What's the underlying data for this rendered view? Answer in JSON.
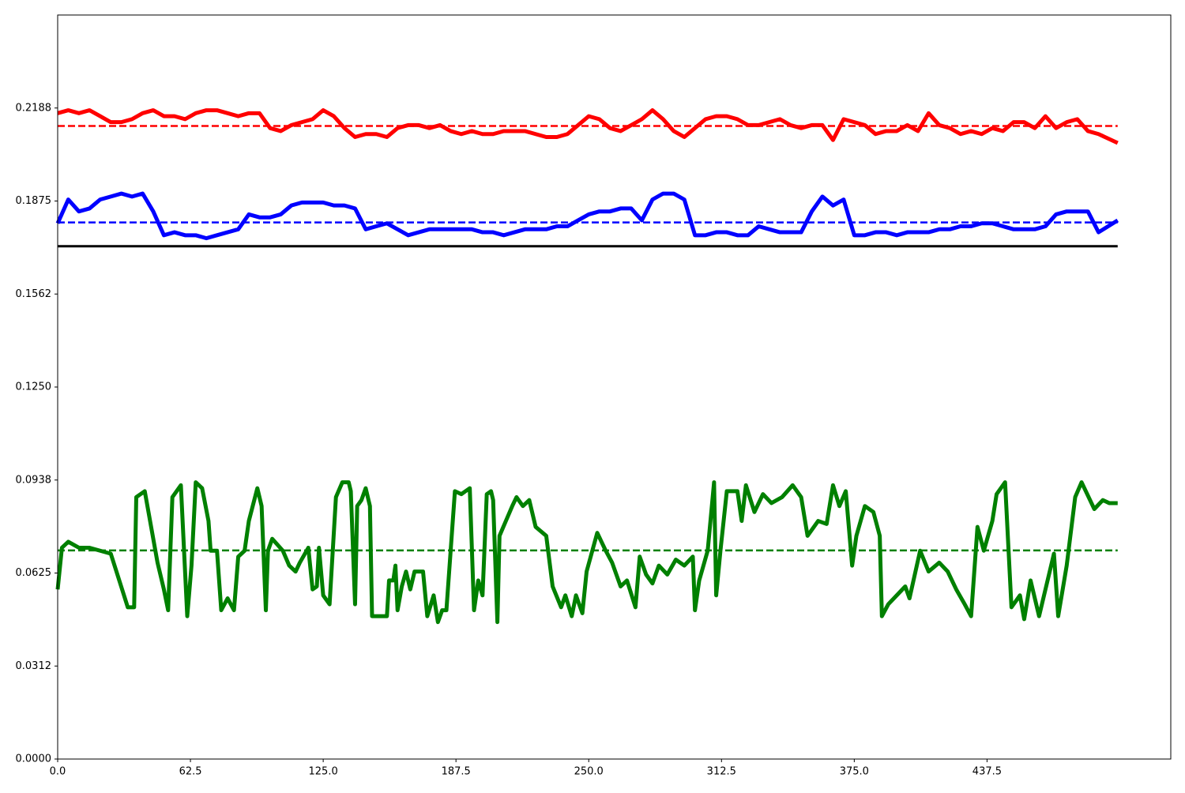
{
  "chart_data": {
    "type": "line",
    "xlim": [
      0,
      524
    ],
    "ylim": [
      0,
      0.25
    ],
    "xticks": [
      {
        "value": 0,
        "label": "0.0"
      },
      62.5,
      {
        "value": 125,
        "label": "125.0"
      },
      187.5,
      {
        "value": 250,
        "label": "250.0"
      },
      312.5,
      {
        "value": 375,
        "label": "375.0"
      },
      437.5
    ],
    "yticks": [
      {
        "value": 0,
        "label": "0.0000"
      },
      {
        "value": 0.03125,
        "label": "0.0312"
      },
      {
        "value": 0.0625,
        "label": "0.0625"
      },
      {
        "value": 0.09375,
        "label": "0.0938"
      },
      {
        "value": 0.125,
        "label": "0.1250"
      },
      {
        "value": 0.15625,
        "label": "0.1562"
      },
      {
        "value": 0.1875,
        "label": "0.1875"
      },
      {
        "value": 0.21875,
        "label": "0.2188"
      }
    ],
    "series": [
      {
        "color": "#ff0000",
        "style": "solid",
        "x": [
          0,
          5,
          10,
          15,
          20,
          25,
          30,
          35,
          40,
          45,
          50,
          55,
          60,
          65,
          70,
          75,
          80,
          85,
          90,
          95,
          100,
          105,
          110,
          115,
          120,
          125,
          130,
          135,
          140,
          145,
          150,
          155,
          160,
          165,
          170,
          175,
          180,
          185,
          190,
          195,
          200,
          205,
          210,
          215,
          220,
          225,
          230,
          235,
          240,
          245,
          250,
          255,
          260,
          265,
          270,
          275,
          280,
          285,
          290,
          295,
          300,
          305,
          310,
          315,
          320,
          325,
          330,
          335,
          340,
          345,
          350,
          355,
          360,
          365,
          370,
          375,
          380,
          385,
          390,
          395,
          400,
          405,
          410,
          415,
          420,
          425,
          430,
          435,
          440,
          445,
          450,
          455,
          460,
          465,
          470,
          475,
          480,
          485,
          490,
          499
        ],
        "values": [
          0.217,
          0.218,
          0.217,
          0.218,
          0.216,
          0.214,
          0.214,
          0.215,
          0.217,
          0.218,
          0.216,
          0.216,
          0.215,
          0.217,
          0.218,
          0.218,
          0.217,
          0.216,
          0.217,
          0.217,
          0.212,
          0.211,
          0.213,
          0.214,
          0.215,
          0.218,
          0.216,
          0.212,
          0.209,
          0.21,
          0.21,
          0.209,
          0.212,
          0.213,
          0.213,
          0.212,
          0.213,
          0.211,
          0.21,
          0.211,
          0.21,
          0.21,
          0.211,
          0.211,
          0.211,
          0.21,
          0.209,
          0.209,
          0.21,
          0.213,
          0.216,
          0.215,
          0.212,
          0.211,
          0.213,
          0.215,
          0.218,
          0.215,
          0.211,
          0.209,
          0.212,
          0.215,
          0.216,
          0.216,
          0.215,
          0.213,
          0.213,
          0.214,
          0.215,
          0.213,
          0.212,
          0.213,
          0.213,
          0.208,
          0.215,
          0.214,
          0.213,
          0.21,
          0.211,
          0.211,
          0.213,
          0.211,
          0.217,
          0.213,
          0.212,
          0.21,
          0.211,
          0.21,
          0.212,
          0.211,
          0.214,
          0.214,
          0.212,
          0.216,
          0.212,
          0.214,
          0.215,
          0.211,
          0.21,
          0.207
        ]
      },
      {
        "color": "#ff0000",
        "style": "dashed",
        "x": [
          0,
          499
        ],
        "values": [
          0.2127,
          0.2127
        ]
      },
      {
        "color": "#0000ff",
        "style": "solid",
        "x": [
          0,
          5,
          10,
          15,
          20,
          25,
          30,
          35,
          40,
          45,
          50,
          55,
          60,
          65,
          70,
          75,
          80,
          85,
          90,
          95,
          100,
          105,
          110,
          115,
          120,
          125,
          130,
          135,
          140,
          145,
          150,
          155,
          160,
          165,
          170,
          175,
          180,
          185,
          190,
          195,
          200,
          205,
          210,
          215,
          220,
          225,
          230,
          235,
          240,
          245,
          250,
          255,
          260,
          265,
          270,
          275,
          280,
          285,
          290,
          295,
          300,
          305,
          310,
          315,
          320,
          325,
          330,
          335,
          340,
          345,
          350,
          355,
          360,
          365,
          370,
          375,
          380,
          385,
          390,
          395,
          400,
          405,
          410,
          415,
          420,
          425,
          430,
          435,
          440,
          445,
          450,
          455,
          460,
          465,
          470,
          475,
          480,
          485,
          490,
          499
        ],
        "values": [
          0.18,
          0.188,
          0.184,
          0.185,
          0.188,
          0.189,
          0.19,
          0.189,
          0.19,
          0.184,
          0.176,
          0.177,
          0.176,
          0.176,
          0.175,
          0.176,
          0.177,
          0.178,
          0.183,
          0.182,
          0.182,
          0.183,
          0.186,
          0.187,
          0.187,
          0.187,
          0.186,
          0.186,
          0.185,
          0.178,
          0.179,
          0.18,
          0.178,
          0.176,
          0.177,
          0.178,
          0.178,
          0.178,
          0.178,
          0.178,
          0.177,
          0.177,
          0.176,
          0.177,
          0.178,
          0.178,
          0.178,
          0.179,
          0.179,
          0.181,
          0.183,
          0.184,
          0.184,
          0.185,
          0.185,
          0.181,
          0.188,
          0.19,
          0.19,
          0.188,
          0.176,
          0.176,
          0.177,
          0.177,
          0.176,
          0.176,
          0.179,
          0.178,
          0.177,
          0.177,
          0.177,
          0.184,
          0.189,
          0.186,
          0.188,
          0.176,
          0.176,
          0.177,
          0.177,
          0.176,
          0.177,
          0.177,
          0.177,
          0.178,
          0.178,
          0.179,
          0.179,
          0.18,
          0.18,
          0.179,
          0.178,
          0.178,
          0.178,
          0.179,
          0.183,
          0.184,
          0.184,
          0.184,
          0.177,
          0.181
        ]
      },
      {
        "color": "#0000ff",
        "style": "dashed",
        "x": [
          0,
          499
        ],
        "values": [
          0.1803,
          0.1803
        ]
      },
      {
        "color": "#000000",
        "style": "thin",
        "x": [
          0,
          499
        ],
        "values": [
          0.1723,
          0.1723
        ]
      },
      {
        "color": "#008000",
        "style": "solid",
        "x": [
          0,
          2,
          5,
          10,
          15,
          20,
          25,
          29,
          33,
          36,
          37,
          41,
          44,
          47,
          50,
          52,
          54,
          58,
          61,
          63,
          65,
          68,
          71,
          72,
          75,
          77,
          80,
          83,
          85,
          88,
          90,
          94,
          96,
          98,
          99,
          101,
          106,
          109,
          112,
          114,
          118,
          120,
          122,
          123,
          125,
          128,
          131,
          134,
          137,
          138,
          140,
          141,
          143,
          145,
          147,
          148,
          155,
          156,
          158,
          159,
          160,
          162,
          164,
          166,
          168,
          172,
          174,
          177,
          179,
          181,
          183,
          185,
          187,
          190,
          192,
          194,
          196,
          198,
          200,
          202,
          204,
          205,
          207,
          208,
          211,
          214,
          216,
          219,
          222,
          225,
          230,
          233,
          237,
          239,
          242,
          244,
          247,
          249,
          254,
          258,
          261,
          265,
          268,
          272,
          274,
          277,
          280,
          283,
          287,
          291,
          295,
          299,
          300,
          302,
          306,
          309,
          310,
          312,
          315,
          320,
          322,
          324,
          328,
          332,
          336,
          341,
          346,
          350,
          353,
          358,
          362,
          365,
          368,
          371,
          374,
          376,
          380,
          384,
          387,
          388,
          391,
          395,
          399,
          401,
          406,
          410,
          415,
          419,
          423,
          427,
          430,
          433,
          436,
          440,
          442,
          446,
          449,
          453,
          455,
          458,
          462,
          466,
          469,
          471,
          475,
          479,
          482,
          488,
          492,
          495,
          499
        ],
        "values": [
          0.057,
          0.071,
          0.073,
          0.071,
          0.071,
          0.07,
          0.069,
          0.06,
          0.051,
          0.051,
          0.088,
          0.09,
          0.078,
          0.066,
          0.057,
          0.05,
          0.088,
          0.092,
          0.048,
          0.065,
          0.093,
          0.091,
          0.08,
          0.07,
          0.07,
          0.05,
          0.054,
          0.05,
          0.068,
          0.07,
          0.08,
          0.091,
          0.085,
          0.05,
          0.07,
          0.074,
          0.07,
          0.065,
          0.063,
          0.066,
          0.071,
          0.057,
          0.058,
          0.071,
          0.055,
          0.052,
          0.088,
          0.093,
          0.093,
          0.09,
          0.052,
          0.085,
          0.087,
          0.091,
          0.085,
          0.048,
          0.048,
          0.06,
          0.06,
          0.065,
          0.05,
          0.058,
          0.063,
          0.057,
          0.063,
          0.063,
          0.048,
          0.055,
          0.046,
          0.05,
          0.05,
          0.07,
          0.09,
          0.089,
          0.09,
          0.091,
          0.05,
          0.06,
          0.055,
          0.089,
          0.09,
          0.087,
          0.046,
          0.075,
          0.08,
          0.085,
          0.088,
          0.085,
          0.087,
          0.078,
          0.075,
          0.058,
          0.051,
          0.055,
          0.048,
          0.055,
          0.049,
          0.063,
          0.076,
          0.07,
          0.066,
          0.058,
          0.06,
          0.051,
          0.068,
          0.062,
          0.059,
          0.065,
          0.062,
          0.067,
          0.065,
          0.068,
          0.05,
          0.06,
          0.07,
          0.093,
          0.055,
          0.07,
          0.09,
          0.09,
          0.08,
          0.092,
          0.083,
          0.089,
          0.086,
          0.088,
          0.092,
          0.088,
          0.075,
          0.08,
          0.079,
          0.092,
          0.085,
          0.09,
          0.065,
          0.075,
          0.085,
          0.083,
          0.075,
          0.048,
          0.052,
          0.055,
          0.058,
          0.054,
          0.07,
          0.063,
          0.066,
          0.063,
          0.057,
          0.052,
          0.048,
          0.078,
          0.07,
          0.08,
          0.089,
          0.093,
          0.051,
          0.055,
          0.047,
          0.06,
          0.048,
          0.06,
          0.069,
          0.048,
          0.065,
          0.088,
          0.093,
          0.084,
          0.087,
          0.086,
          0.086
        ]
      },
      {
        "color": "#008000",
        "style": "dashed",
        "x": [
          0,
          499
        ],
        "values": [
          0.0701,
          0.0701
        ]
      }
    ]
  }
}
